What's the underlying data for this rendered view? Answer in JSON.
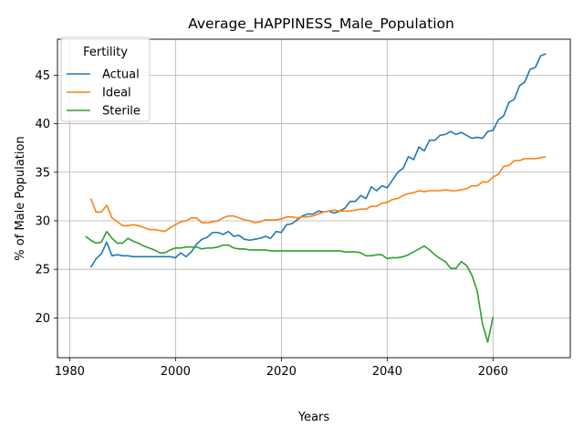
{
  "chart_data": {
    "type": "line",
    "title": "Average_HAPPINESS_Male_Population",
    "xlabel": "Years",
    "ylabel": "% of Male Population",
    "xlim": [
      1977.7,
      2074.6
    ],
    "ylim": [
      15.9,
      48.7
    ],
    "x_ticks": [
      1980,
      2000,
      2020,
      2040,
      2060
    ],
    "y_ticks": [
      20,
      25,
      30,
      35,
      40,
      45
    ],
    "grid": true,
    "legend": {
      "title": "Fertility",
      "placement": "upper-left"
    },
    "series": [
      {
        "name": "Actual",
        "color": "#1f77b4",
        "x": [
          1984,
          1985,
          1986,
          1987,
          1988,
          1989,
          1990,
          1991,
          1992,
          1993,
          1994,
          1995,
          1996,
          1997,
          1998,
          1999,
          2000,
          2001,
          2002,
          2003,
          2004,
          2005,
          2006,
          2007,
          2008,
          2009,
          2010,
          2011,
          2012,
          2013,
          2014,
          2015,
          2016,
          2017,
          2018,
          2019,
          2020,
          2021,
          2022,
          2023,
          2024,
          2025,
          2026,
          2027,
          2028,
          2029,
          2030,
          2031,
          2032,
          2033,
          2034,
          2035,
          2036,
          2037,
          2038,
          2039,
          2040,
          2041,
          2042,
          2043,
          2044,
          2045,
          2046,
          2047,
          2048,
          2049,
          2050,
          2051,
          2052,
          2053,
          2054,
          2055,
          2056,
          2057,
          2058,
          2059,
          2060,
          2061,
          2062,
          2063,
          2064,
          2065,
          2066,
          2067,
          2068,
          2069,
          2070
        ],
        "values": [
          25.2,
          26.1,
          26.6,
          27.8,
          26.4,
          26.5,
          26.4,
          26.4,
          26.3,
          26.3,
          26.3,
          26.3,
          26.3,
          26.3,
          26.3,
          26.3,
          26.2,
          26.7,
          26.3,
          26.8,
          27.6,
          28.1,
          28.3,
          28.8,
          28.8,
          28.6,
          28.9,
          28.4,
          28.5,
          28.1,
          28.0,
          28.1,
          28.2,
          28.4,
          28.2,
          28.9,
          28.8,
          29.6,
          29.7,
          30.1,
          30.5,
          30.7,
          30.7,
          31.0,
          30.9,
          31.0,
          30.8,
          31.0,
          31.3,
          32.0,
          32.0,
          32.6,
          32.3,
          33.5,
          33.1,
          33.6,
          33.4,
          34.2,
          35.0,
          35.4,
          36.6,
          36.3,
          37.6,
          37.2,
          38.3,
          38.3,
          38.8,
          38.9,
          39.2,
          38.9,
          39.1,
          38.8,
          38.5,
          38.6,
          38.5,
          39.2,
          39.3,
          40.4,
          40.8,
          42.2,
          42.5,
          43.9,
          44.3,
          45.6,
          45.8,
          47.0,
          47.2
        ]
      },
      {
        "name": "Ideal",
        "color": "#ff7f0e",
        "x": [
          1984,
          1985,
          1986,
          1987,
          1988,
          1989,
          1990,
          1991,
          1992,
          1993,
          1994,
          1995,
          1996,
          1997,
          1998,
          1999,
          2000,
          2001,
          2002,
          2003,
          2004,
          2005,
          2006,
          2007,
          2008,
          2009,
          2010,
          2011,
          2012,
          2013,
          2014,
          2015,
          2016,
          2017,
          2018,
          2019,
          2020,
          2021,
          2022,
          2023,
          2024,
          2025,
          2026,
          2027,
          2028,
          2029,
          2030,
          2031,
          2032,
          2033,
          2034,
          2035,
          2036,
          2037,
          2038,
          2039,
          2040,
          2041,
          2042,
          2043,
          2044,
          2045,
          2046,
          2047,
          2048,
          2049,
          2050,
          2051,
          2052,
          2053,
          2054,
          2055,
          2056,
          2057,
          2058,
          2059,
          2060,
          2061,
          2062,
          2063,
          2064,
          2065,
          2066,
          2067,
          2068,
          2069,
          2070
        ],
        "values": [
          32.3,
          30.9,
          30.9,
          31.6,
          30.3,
          29.9,
          29.5,
          29.5,
          29.6,
          29.5,
          29.3,
          29.1,
          29.1,
          29.0,
          28.9,
          29.3,
          29.6,
          29.9,
          30.0,
          30.3,
          30.3,
          29.8,
          29.8,
          29.9,
          30.0,
          30.3,
          30.5,
          30.5,
          30.3,
          30.1,
          30.0,
          29.8,
          29.9,
          30.1,
          30.1,
          30.1,
          30.2,
          30.4,
          30.4,
          30.3,
          30.4,
          30.4,
          30.5,
          30.7,
          30.9,
          31.0,
          31.1,
          31.0,
          31.0,
          31.0,
          31.1,
          31.2,
          31.2,
          31.5,
          31.5,
          31.8,
          31.9,
          32.2,
          32.3,
          32.6,
          32.8,
          32.9,
          33.1,
          33.0,
          33.1,
          33.1,
          33.1,
          33.2,
          33.1,
          33.1,
          33.2,
          33.3,
          33.6,
          33.6,
          34.0,
          34.0,
          34.5,
          34.8,
          35.6,
          35.7,
          36.2,
          36.2,
          36.4,
          36.4,
          36.4,
          36.5,
          36.6
        ]
      },
      {
        "name": "Sterile",
        "color": "#2ca02c",
        "x": [
          1983,
          1984,
          1985,
          1986,
          1987,
          1988,
          1989,
          1990,
          1991,
          1992,
          1993,
          1994,
          1995,
          1996,
          1997,
          1998,
          1999,
          2000,
          2001,
          2002,
          2003,
          2004,
          2005,
          2006,
          2007,
          2008,
          2009,
          2010,
          2011,
          2012,
          2013,
          2014,
          2015,
          2016,
          2017,
          2018,
          2019,
          2020,
          2021,
          2022,
          2023,
          2024,
          2025,
          2026,
          2027,
          2028,
          2029,
          2030,
          2031,
          2032,
          2033,
          2034,
          2035,
          2036,
          2037,
          2038,
          2039,
          2040,
          2041,
          2042,
          2043,
          2044,
          2045,
          2046,
          2047,
          2048,
          2049,
          2050,
          2051,
          2052,
          2053,
          2054,
          2055,
          2056,
          2057,
          2058,
          2059,
          2060
        ],
        "values": [
          28.4,
          28.0,
          27.7,
          27.8,
          28.9,
          28.2,
          27.7,
          27.7,
          28.2,
          27.9,
          27.7,
          27.4,
          27.2,
          27.0,
          26.7,
          26.7,
          27.0,
          27.2,
          27.2,
          27.3,
          27.3,
          27.3,
          27.1,
          27.2,
          27.2,
          27.3,
          27.5,
          27.5,
          27.2,
          27.1,
          27.1,
          27.0,
          27.0,
          27.0,
          27.0,
          26.9,
          26.9,
          26.9,
          26.9,
          26.9,
          26.9,
          26.9,
          26.9,
          26.9,
          26.9,
          26.9,
          26.9,
          26.9,
          26.9,
          26.8,
          26.8,
          26.8,
          26.7,
          26.4,
          26.4,
          26.5,
          26.5,
          26.1,
          26.2,
          26.2,
          26.3,
          26.5,
          26.8,
          27.1,
          27.4,
          27.0,
          26.5,
          26.1,
          25.8,
          25.1,
          25.1,
          25.8,
          25.4,
          24.4,
          22.8,
          19.4,
          17.5,
          20.1
        ]
      }
    ]
  }
}
